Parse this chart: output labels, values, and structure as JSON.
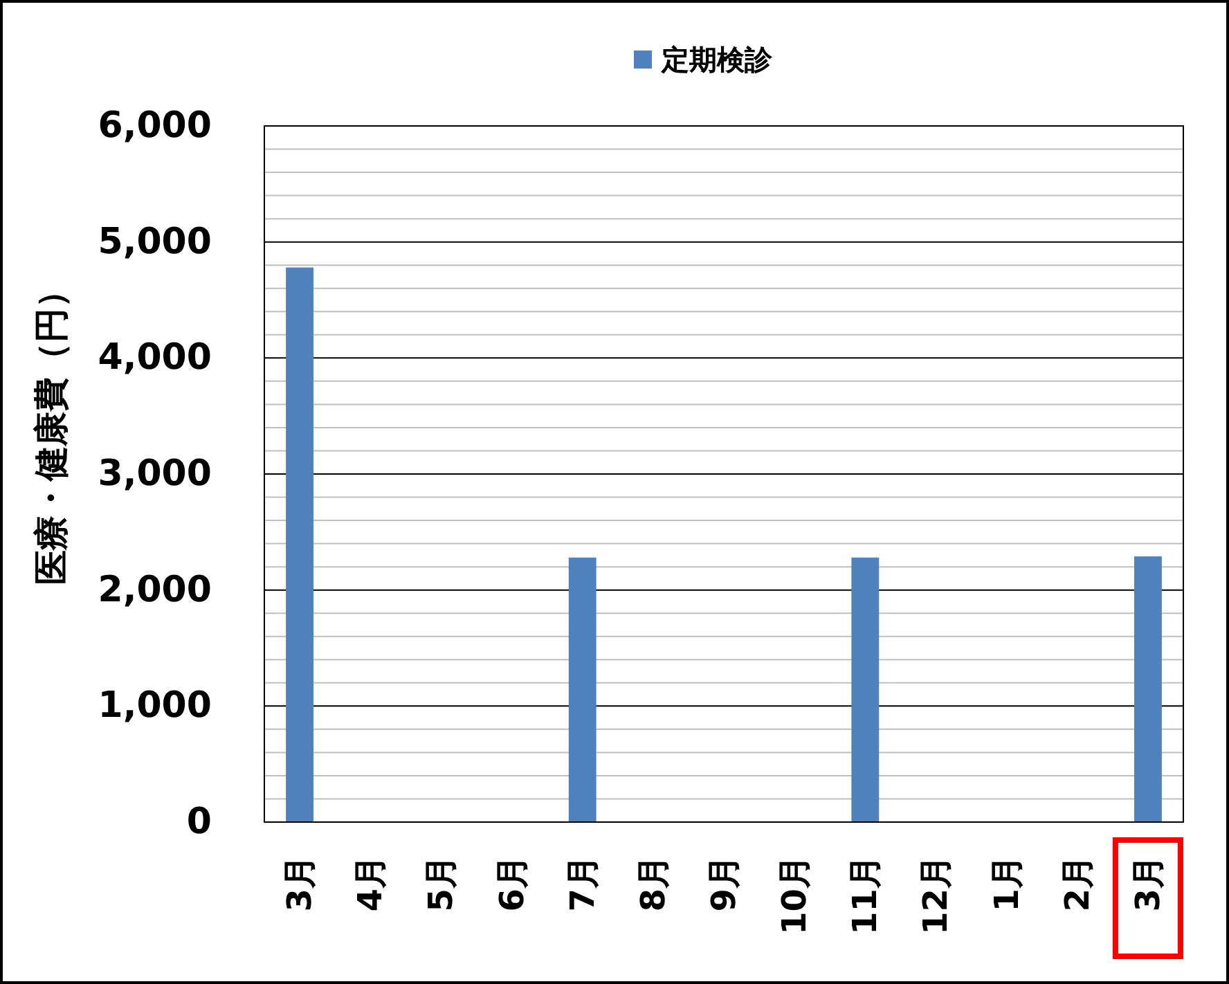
{
  "chart_data": {
    "type": "bar",
    "categories": [
      "3月",
      "4月",
      "5月",
      "6月",
      "7月",
      "8月",
      "9月",
      "10月",
      "11月",
      "12月",
      "1月",
      "2月",
      "3月"
    ],
    "series": [
      {
        "name": "定期検診",
        "color": "#4f81bd",
        "values": [
          4780,
          null,
          null,
          null,
          2280,
          null,
          null,
          null,
          2280,
          null,
          null,
          null,
          2290
        ]
      }
    ],
    "ylabel": "医療・健康費（円）",
    "ylim": [
      0,
      6000
    ],
    "yticks": [
      0,
      {
        "value": 200,
        "label": null
      },
      {
        "value": 400,
        "label": null
      },
      {
        "value": 600,
        "label": null
      },
      {
        "value": 800,
        "label": null
      },
      {
        "value": 1000,
        "label": "1,000"
      },
      {
        "value": 1200,
        "label": null
      },
      {
        "value": 1400,
        "label": null
      },
      {
        "value": 1600,
        "label": null
      },
      {
        "value": 1800,
        "label": null
      },
      {
        "value": 2000,
        "label": "2,000"
      },
      {
        "value": 2200,
        "label": null
      },
      {
        "value": 2400,
        "label": null
      },
      {
        "value": 2600,
        "label": null
      },
      {
        "value": 2800,
        "label": null
      },
      {
        "value": 3000,
        "label": "3,000"
      },
      {
        "value": 3200,
        "label": null
      },
      {
        "value": 3400,
        "label": null
      },
      {
        "value": 3600,
        "label": null
      },
      {
        "value": 3800,
        "label": null
      },
      {
        "value": 4000,
        "label": "4,000"
      },
      {
        "value": 4200,
        "label": null
      },
      {
        "value": 4400,
        "label": null
      },
      {
        "value": 4600,
        "label": null
      },
      {
        "value": 4800,
        "label": null
      },
      {
        "value": 5000,
        "label": "5,000"
      },
      {
        "value": 5200,
        "label": null
      },
      {
        "value": 5400,
        "label": null
      },
      {
        "value": 5600,
        "label": null
      },
      {
        "value": 5800,
        "label": null
      },
      {
        "value": 6000,
        "label": "6,000"
      }
    ],
    "grid": "y",
    "legend": "top"
  }
}
